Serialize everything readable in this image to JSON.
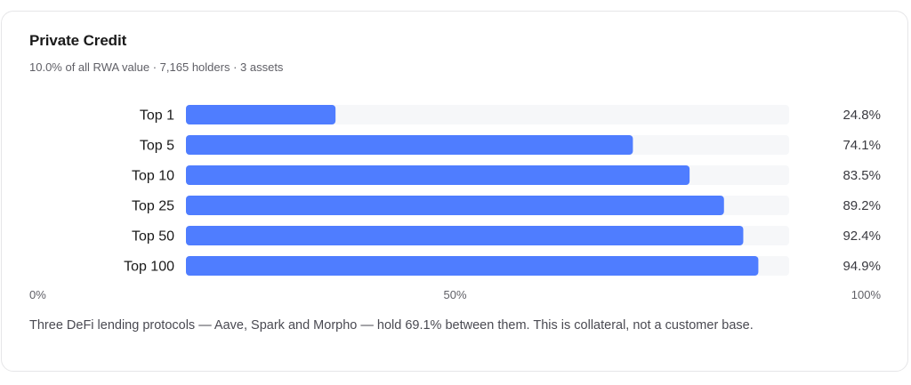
{
  "card": {
    "title": "Private Credit",
    "subtitle": "10.0% of all RWA value · 7,165 holders · 3 assets",
    "footnote": "Three DeFi lending protocols — Aave, Spark and Morpho — hold 69.1% between them. This is collateral, not a customer base."
  },
  "chart_data": {
    "type": "bar",
    "orientation": "horizontal",
    "categories": [
      "Top 1",
      "Top 5",
      "Top 10",
      "Top 25",
      "Top 50",
      "Top 100"
    ],
    "values": [
      24.8,
      74.1,
      83.5,
      89.2,
      92.4,
      94.9
    ],
    "value_labels": [
      "24.8%",
      "74.1%",
      "83.5%",
      "89.2%",
      "92.4%",
      "94.9%"
    ],
    "xlim": [
      0,
      100
    ],
    "x_ticks": [
      {
        "value": 0,
        "label": "0%"
      },
      {
        "value": 50,
        "label": "50%"
      },
      {
        "value": 100,
        "label": "100%"
      }
    ],
    "grid": false,
    "bar_color": "#4f7dff",
    "track_color": "#f6f7f9"
  }
}
